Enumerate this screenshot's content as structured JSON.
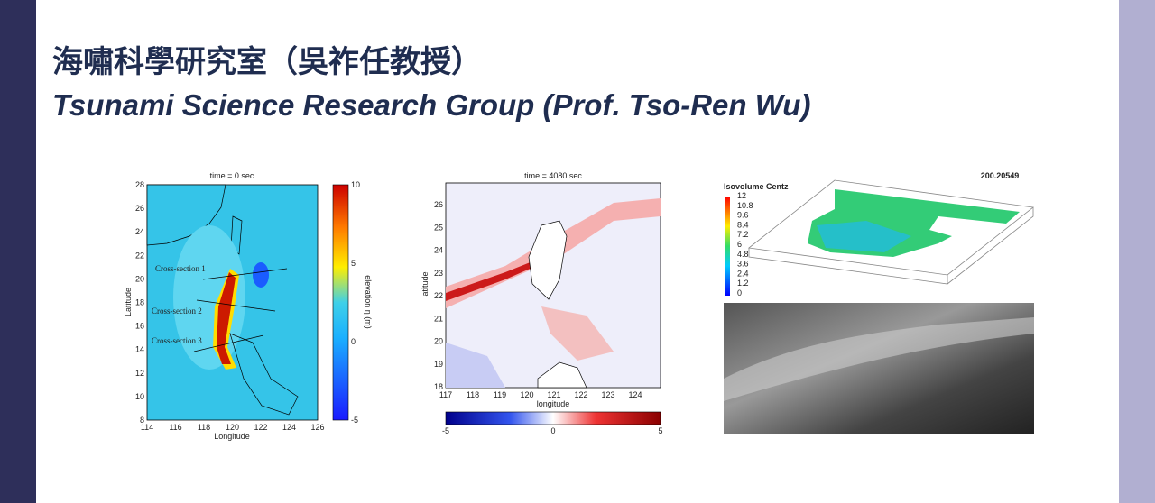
{
  "header": {
    "title_zh": "海嘯科學研究室（吳祚任教授）",
    "title_en": "Tsunami Science Research Group (Prof. Tso-Ren Wu)"
  },
  "figures": [
    {
      "title": "time = 0 sec",
      "xlabel": "Longitude",
      "ylabel": "Latitude",
      "xticks": [
        "114",
        "116",
        "118",
        "120",
        "122",
        "124",
        "126"
      ],
      "yticks": [
        "28",
        "26",
        "24",
        "22",
        "20",
        "18",
        "16",
        "14",
        "12",
        "10",
        "8"
      ],
      "colorbar_label": "elevation η (m)",
      "colorbar_ticks": [
        "10",
        "5",
        "0",
        "-5"
      ],
      "annotations": [
        "Cross-section 1",
        "Cross-section 2",
        "Cross-section 3"
      ]
    },
    {
      "title": "time = 4080 sec",
      "xlabel": "longitude",
      "ylabel": "latitude",
      "xticks": [
        "117",
        "118",
        "119",
        "120",
        "121",
        "122",
        "123",
        "124"
      ],
      "yticks": [
        "26",
        "25",
        "24",
        "23",
        "22",
        "21",
        "20",
        "19",
        "18"
      ],
      "colorbar_ticks": [
        "-5",
        "0",
        "5"
      ]
    },
    {
      "title": "200.20549",
      "legend_title": "Isovolume Centz",
      "legend_ticks": [
        "12",
        "10.8",
        "9.6",
        "8.4",
        "7.2",
        "6",
        "4.8",
        "3.6",
        "2.4",
        "1.2",
        "0"
      ]
    }
  ]
}
